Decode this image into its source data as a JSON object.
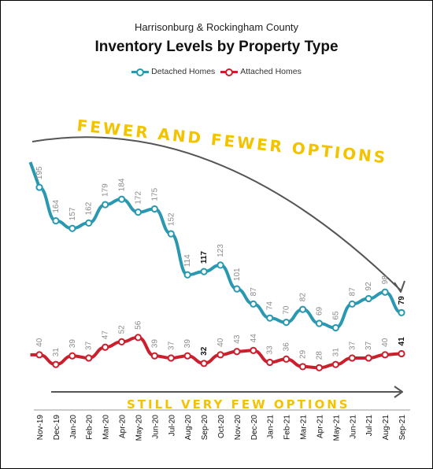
{
  "chart_data": {
    "type": "line",
    "subtitle": "Harrisonburg & Rockingham County",
    "title": "Inventory Levels by Property Type",
    "x": [
      "Nov-19",
      "Dec-19",
      "Jan-20",
      "Feb-20",
      "Mar-20",
      "Apr-20",
      "May-20",
      "Jun-20",
      "Jul-20",
      "Aug-20",
      "Sep-20",
      "Oct-20",
      "Nov-20",
      "Dec-20",
      "Jan-21",
      "Feb-21",
      "Mar-21",
      "Apr-21",
      "May-21",
      "Jun-21",
      "Jul-21",
      "Aug-21",
      "Sep-21"
    ],
    "series": [
      {
        "name": "Detached Homes",
        "color": "#2a98b0",
        "values": [
          195,
          164,
          157,
          162,
          179,
          184,
          172,
          175,
          152,
          114,
          117,
          123,
          101,
          87,
          74,
          70,
          82,
          69,
          65,
          87,
          92,
          98,
          79
        ]
      },
      {
        "name": "Attached Homes",
        "color": "#cc1f2d",
        "values": [
          40,
          31,
          39,
          37,
          47,
          52,
          56,
          39,
          37,
          39,
          32,
          40,
          43,
          44,
          33,
          36,
          29,
          28,
          31,
          37,
          37,
          40,
          41
        ]
      }
    ],
    "highlighted_labels": [
      "Sep-20",
      "Sep-21"
    ],
    "y_axis_visible": false,
    "grid": false,
    "legend_position": "top",
    "annotations": [
      "FEWER AND FEWER OPTIONS",
      "STILL VERY FEW OPTIONS"
    ],
    "annotation_color": "#f3c300"
  }
}
